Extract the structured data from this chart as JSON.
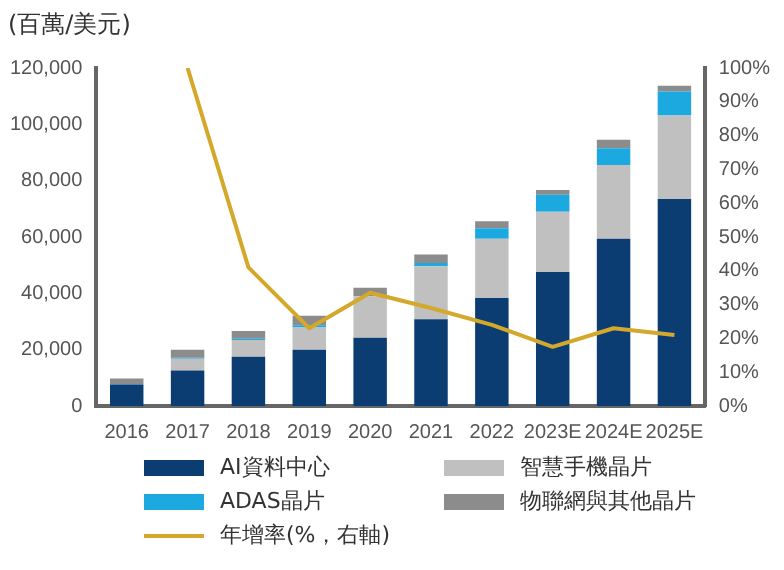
{
  "chart_data": {
    "type": "bar",
    "stacked": true,
    "ylabel": "(百萬/美元)",
    "legend": "bottom",
    "grid": false,
    "categories": [
      "2016",
      "2017",
      "2018",
      "2019",
      "2020",
      "2021",
      "2022",
      "2023E",
      "2024E",
      "2025E"
    ],
    "ylim": [
      0,
      120000
    ],
    "yticks": [
      {
        "value": 0,
        "label": "0"
      },
      {
        "value": 20000,
        "label": "20,000"
      },
      {
        "value": 40000,
        "label": "40,000"
      },
      {
        "value": 60000,
        "label": "60,000"
      },
      {
        "value": 80000,
        "label": "80,000"
      },
      {
        "value": 100000,
        "label": "100,000"
      },
      {
        "value": 120000,
        "label": "120,000"
      }
    ],
    "y2lim": [
      0,
      100
    ],
    "y2ticks": [
      {
        "value": 0,
        "label": "0%"
      },
      {
        "value": 10,
        "label": "10%"
      },
      {
        "value": 20,
        "label": "20%"
      },
      {
        "value": 30,
        "label": "30%"
      },
      {
        "value": 40,
        "label": "40%"
      },
      {
        "value": 50,
        "label": "50%"
      },
      {
        "value": 60,
        "label": "60%"
      },
      {
        "value": 70,
        "label": "70%"
      },
      {
        "value": 80,
        "label": "80%"
      },
      {
        "value": 90,
        "label": "90%"
      },
      {
        "value": 100,
        "label": "100%"
      }
    ],
    "series": [
      {
        "name": "AI資料中心",
        "color": "#0b3d73",
        "values": [
          7600,
          12600,
          17500,
          20000,
          24200,
          30800,
          38300,
          47600,
          59400,
          73500
        ]
      },
      {
        "name": "智慧手機晶片",
        "color": "#c0c0c0",
        "values": [
          null,
          4200,
          5900,
          7900,
          14800,
          18800,
          21100,
          21400,
          26200,
          29600
        ]
      },
      {
        "name": "ADAS晶片",
        "color": "#1ba9e0",
        "values": [
          200,
          300,
          500,
          800,
          null,
          1200,
          3700,
          6000,
          5900,
          8600
        ]
      },
      {
        "name": "物聯網與其他晶片",
        "color": "#8c8c8c",
        "values": [
          2000,
          2900,
          2700,
          3300,
          3000,
          3000,
          2500,
          1700,
          3000,
          2000
        ]
      },
      {
        "name": "年增率(%，右軸)",
        "type": "line",
        "axis": "y2",
        "color": "#d4a82a",
        "marker": "none",
        "values": [
          null,
          100,
          41,
          23,
          33.5,
          29,
          24,
          17.5,
          23,
          21
        ]
      }
    ]
  }
}
